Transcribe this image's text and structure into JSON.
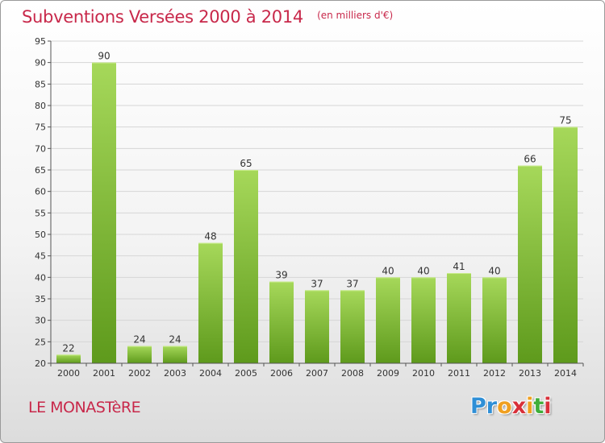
{
  "header": {
    "title": "Subventions Versées 2000 à 2014",
    "subtitle": "(en milliers d'€)"
  },
  "footer": {
    "commune": "LE MONASTèRE",
    "logo_letters": [
      "P",
      "r",
      "o",
      "x",
      "i",
      "t",
      "i"
    ],
    "logo_colors": [
      "#2f8fd6",
      "#2f8fd6",
      "#f0a020",
      "#d8303a",
      "#f0a020",
      "#3fae3a",
      "#d8303a"
    ]
  },
  "colors": {
    "accent": "#c8284a",
    "bar_light": "#a6d85a",
    "bar_dark": "#5e9a1c",
    "grid": "#d6d6d6",
    "axis": "#555555",
    "tick_text": "#333333"
  },
  "chart_data": {
    "type": "bar",
    "categories": [
      "2000",
      "2001",
      "2002",
      "2003",
      "2004",
      "2005",
      "2006",
      "2007",
      "2008",
      "2009",
      "2010",
      "2011",
      "2012",
      "2013",
      "2014"
    ],
    "values": [
      22,
      90,
      24,
      24,
      48,
      65,
      39,
      37,
      37,
      40,
      40,
      41,
      40,
      66,
      75
    ],
    "ylim": [
      20,
      95
    ],
    "ytick_step": 5,
    "grid": true,
    "data_labels": true,
    "legend": "none"
  }
}
